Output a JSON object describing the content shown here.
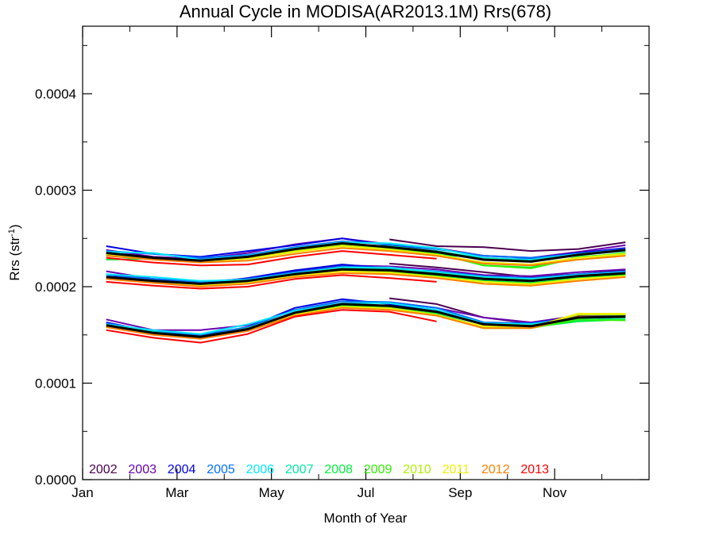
{
  "chart_data": {
    "type": "line",
    "title": "Annual Cycle in MODISA(AR2013.1M) Rrs(678)",
    "xlabel": "Month of Year",
    "ylabel_main": "Rrs (str",
    "ylabel_sup": "-1",
    "ylabel_close": ")",
    "xlim": [
      0,
      12
    ],
    "ylim": [
      0,
      0.00047
    ],
    "x_ticks": [
      {
        "value": 0,
        "label": "Jan"
      },
      {
        "value": 2,
        "label": "Mar"
      },
      {
        "value": 4,
        "label": "May"
      },
      {
        "value": 6,
        "label": "Jul"
      },
      {
        "value": 8,
        "label": "Sep"
      },
      {
        "value": 10,
        "label": "Nov"
      }
    ],
    "y_ticks": [
      {
        "value": 0.0,
        "label": "0.0000"
      },
      {
        "value": 0.0001,
        "label": "0.0001"
      },
      {
        "value": 0.0002,
        "label": "0.0002"
      },
      {
        "value": 0.0003,
        "label": "0.0003"
      },
      {
        "value": 0.0004,
        "label": "0.0004"
      }
    ],
    "x": [
      0.5,
      1.5,
      2.5,
      3.5,
      4.5,
      5.5,
      6.5,
      7.5,
      8.5,
      9.5,
      10.5,
      11.5
    ],
    "series": [
      {
        "name": "2002",
        "color": "#4b0050",
        "upper": [
          null,
          null,
          null,
          null,
          null,
          null,
          0.000249,
          0.000242,
          0.000241,
          0.000237,
          0.000239,
          0.000246
        ],
        "middle": [
          null,
          null,
          null,
          null,
          null,
          null,
          0.000224,
          0.00022,
          0.000215,
          0.00021,
          0.000213,
          0.000217
        ],
        "lower": [
          null,
          null,
          null,
          null,
          null,
          null,
          0.000188,
          0.000182,
          0.000168,
          0.000162,
          0.000168,
          0.00017
        ]
      },
      {
        "name": "2003",
        "color": "#6a00b0",
        "upper": [
          0.000238,
          0.000231,
          0.000229,
          0.000235,
          0.000244,
          0.00025,
          0.000244,
          0.00024,
          0.000232,
          0.00023,
          0.000236,
          0.000243
        ],
        "middle": [
          0.000216,
          0.000208,
          0.000205,
          0.000208,
          0.000216,
          0.000222,
          0.000221,
          0.000218,
          0.000212,
          0.000211,
          0.000215,
          0.000218
        ],
        "lower": [
          0.000166,
          0.000155,
          0.000155,
          0.00016,
          0.000175,
          0.000183,
          0.000184,
          0.000178,
          0.000168,
          0.000163,
          0.00017,
          0.000171
        ]
      },
      {
        "name": "2004",
        "color": "#0000e0",
        "upper": [
          0.000242,
          0.000234,
          0.000231,
          0.000237,
          0.000243,
          0.00025,
          0.000243,
          0.000237,
          0.000228,
          0.000229,
          0.000235,
          0.00024
        ],
        "middle": [
          0.000213,
          0.000207,
          0.000203,
          0.000209,
          0.000217,
          0.000223,
          0.000219,
          0.000214,
          0.000209,
          0.000207,
          0.000212,
          0.000216
        ],
        "lower": [
          0.000163,
          0.000153,
          0.000149,
          0.000158,
          0.000178,
          0.000187,
          0.000182,
          0.000175,
          0.000162,
          0.000162,
          0.000169,
          0.00017
        ]
      },
      {
        "name": "2005",
        "color": "#0070ff",
        "upper": [
          0.000237,
          0.000234,
          0.00023,
          0.000233,
          0.000241,
          0.000247,
          0.000244,
          0.000239,
          0.000232,
          0.00023,
          0.000234,
          0.000239
        ],
        "middle": [
          0.000211,
          0.000208,
          0.000205,
          0.000208,
          0.000215,
          0.000221,
          0.000219,
          0.000216,
          0.000211,
          0.000209,
          0.000213,
          0.000216
        ],
        "lower": [
          0.000162,
          0.000154,
          0.00015,
          0.000158,
          0.000176,
          0.000185,
          0.000184,
          0.000178,
          0.000163,
          0.000162,
          0.000168,
          0.000169
        ]
      },
      {
        "name": "2006",
        "color": "#00e8ff",
        "upper": [
          0.000236,
          0.000235,
          0.000228,
          0.000232,
          0.00024,
          0.000246,
          0.000245,
          0.00024,
          0.00023,
          0.000228,
          0.000234,
          0.000238
        ],
        "middle": [
          0.000213,
          0.00021,
          0.000206,
          0.000207,
          0.000214,
          0.00022,
          0.00022,
          0.000215,
          0.00021,
          0.000208,
          0.000212,
          0.000215
        ],
        "lower": [
          0.000161,
          0.000155,
          0.000151,
          0.000161,
          0.000175,
          0.000183,
          0.000183,
          0.000176,
          0.000162,
          0.000161,
          0.000167,
          0.000169
        ]
      },
      {
        "name": "2007",
        "color": "#00e8a0",
        "upper": [
          0.000232,
          0.00023,
          0.000227,
          0.000231,
          0.000238,
          0.000244,
          0.000242,
          0.000237,
          0.000229,
          0.000227,
          0.000233,
          0.000237
        ],
        "middle": [
          0.00021,
          0.000206,
          0.000203,
          0.000206,
          0.000213,
          0.000219,
          0.000218,
          0.000214,
          0.000209,
          0.000207,
          0.00021,
          0.000214
        ],
        "lower": [
          0.00016,
          0.000153,
          0.000148,
          0.000157,
          0.000173,
          0.000181,
          0.00018,
          0.000174,
          0.000161,
          0.00016,
          0.000165,
          0.000168
        ]
      },
      {
        "name": "2008",
        "color": "#00f040",
        "upper": [
          0.000228,
          0.000229,
          0.000226,
          0.000229,
          0.000237,
          0.000242,
          0.000241,
          0.000236,
          0.000222,
          0.00022,
          0.000231,
          0.000234
        ],
        "middle": [
          0.000208,
          0.000205,
          0.000202,
          0.000205,
          0.000212,
          0.000217,
          0.000216,
          0.000212,
          0.000206,
          0.000204,
          0.000209,
          0.000213
        ],
        "lower": [
          0.000159,
          0.000152,
          0.000148,
          0.000156,
          0.000172,
          0.00018,
          0.000179,
          0.000172,
          0.000158,
          0.000158,
          0.000164,
          0.000166
        ]
      },
      {
        "name": "2009",
        "color": "#30f000",
        "upper": [
          0.000233,
          0.000229,
          0.000227,
          0.000229,
          0.000236,
          0.000243,
          0.00024,
          0.000234,
          0.000222,
          0.000219,
          0.00023,
          0.000235
        ],
        "middle": [
          0.000209,
          0.000206,
          0.000202,
          0.000205,
          0.000212,
          0.000217,
          0.000215,
          0.000211,
          0.000203,
          0.000201,
          0.000208,
          0.000212
        ],
        "lower": [
          0.000158,
          0.000151,
          0.000147,
          0.000155,
          0.000172,
          0.00018,
          0.000178,
          0.000171,
          0.000157,
          0.000157,
          0.000166,
          0.000165
        ]
      },
      {
        "name": "2010",
        "color": "#b0f000",
        "upper": [
          0.000234,
          0.000229,
          0.000226,
          0.00023,
          0.000237,
          0.000244,
          0.000239,
          0.000233,
          0.000225,
          0.000223,
          0.00023,
          0.000233
        ],
        "middle": [
          0.000209,
          0.000205,
          0.000202,
          0.000205,
          0.000212,
          0.000217,
          0.000215,
          0.00021,
          0.000205,
          0.000203,
          0.000208,
          0.000211
        ],
        "lower": [
          0.000158,
          0.000151,
          0.000147,
          0.000155,
          0.000171,
          0.000179,
          0.000178,
          0.000171,
          0.000158,
          0.000158,
          0.000171,
          0.000171
        ]
      },
      {
        "name": "2011",
        "color": "#f0f000",
        "upper": [
          0.000234,
          0.00023,
          0.000226,
          0.000229,
          0.000236,
          0.000242,
          0.000238,
          0.000233,
          0.000225,
          0.000223,
          0.00023,
          0.000234
        ],
        "middle": [
          0.000208,
          0.000204,
          0.000201,
          0.000204,
          0.000211,
          0.000216,
          0.000214,
          0.00021,
          0.000205,
          0.000202,
          0.000208,
          0.000211
        ],
        "lower": [
          0.000159,
          0.000151,
          0.000147,
          0.000155,
          0.000171,
          0.000179,
          0.000177,
          0.00017,
          0.000159,
          0.000158,
          0.000172,
          0.000172
        ]
      },
      {
        "name": "2012",
        "color": "#ff8000",
        "upper": [
          0.000232,
          0.000228,
          0.000225,
          0.000227,
          0.000234,
          0.00024,
          0.000237,
          0.000232,
          0.000224,
          0.000222,
          0.000228,
          0.000232
        ],
        "middle": [
          0.000208,
          0.000204,
          0.0002,
          0.000203,
          0.00021,
          0.000214,
          0.000213,
          0.000209,
          0.000203,
          0.000201,
          0.000206,
          0.00021
        ],
        "lower": [
          0.000158,
          0.00015,
          0.000146,
          0.000154,
          0.00017,
          0.000178,
          0.000176,
          0.00017,
          0.000157,
          0.000157,
          0.000169,
          0.000169
        ]
      },
      {
        "name": "2013",
        "color": "#ff0000",
        "upper": [
          0.00023,
          0.000225,
          0.000222,
          0.000223,
          0.000231,
          0.000237,
          0.000233,
          0.000229,
          null,
          null,
          null,
          null
        ],
        "middle": [
          0.000205,
          0.000201,
          0.000198,
          0.0002,
          0.000208,
          0.000212,
          0.000209,
          0.000205,
          null,
          null,
          null,
          null
        ],
        "lower": [
          0.000155,
          0.000147,
          0.000142,
          0.000151,
          0.000169,
          0.000176,
          0.000174,
          0.000164,
          null,
          null,
          null,
          null
        ]
      }
    ],
    "mean": {
      "color": "#000000",
      "upper": [
        0.000235,
        0.00023,
        0.000227,
        0.000231,
        0.000239,
        0.000245,
        0.000241,
        0.000236,
        0.000228,
        0.000226,
        0.000233,
        0.000238
      ],
      "middle": [
        0.00021,
        0.000206,
        0.000203,
        0.000206,
        0.000213,
        0.000218,
        0.000217,
        0.000213,
        0.000208,
        0.000206,
        0.000211,
        0.000214
      ],
      "lower": [
        0.00016,
        0.000152,
        0.000148,
        0.000156,
        0.000173,
        0.000182,
        0.00018,
        0.000174,
        0.000161,
        0.000159,
        0.000168,
        0.000169
      ]
    },
    "legend_position": "bottom-left inside plot",
    "grid": false
  }
}
